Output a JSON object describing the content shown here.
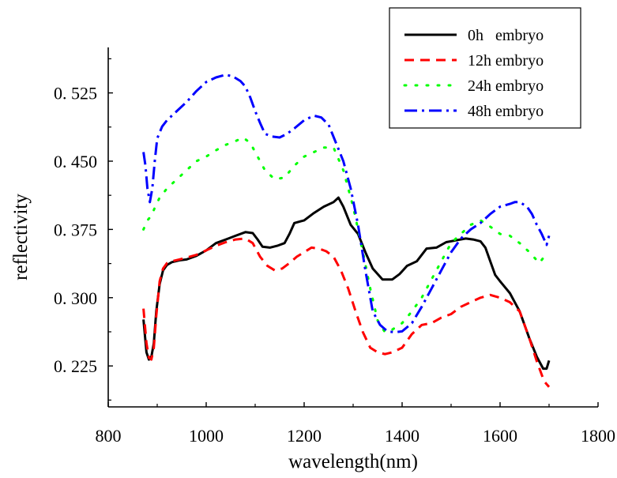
{
  "chart_data": {
    "type": "line",
    "title": "",
    "xlabel": "wavelength(nm)",
    "ylabel": "reflectivity",
    "xlim": [
      800,
      1800
    ],
    "ylim": [
      0.18,
      0.575
    ],
    "xticks": [
      800,
      1000,
      1200,
      1400,
      1600,
      1800
    ],
    "xtick_labels": [
      "800",
      "1000",
      "1200",
      "1400",
      "1600",
      "1800"
    ],
    "yticks": [
      0.225,
      0.3,
      0.375,
      0.45,
      0.525
    ],
    "ytick_labels": [
      "0. 225",
      "0. 300",
      "0. 375",
      "0. 450",
      "0. 525"
    ],
    "grid": false,
    "legend_position": "top-right",
    "series": [
      {
        "name": "0h   embryo",
        "color": "#000000",
        "dash": "solid",
        "x": [
          872,
          878,
          883,
          888,
          893,
          898,
          905,
          912,
          920,
          930,
          945,
          960,
          980,
          1000,
          1020,
          1040,
          1060,
          1080,
          1095,
          1105,
          1115,
          1130,
          1145,
          1160,
          1170,
          1180,
          1200,
          1220,
          1240,
          1260,
          1270,
          1280,
          1295,
          1310,
          1325,
          1340,
          1360,
          1380,
          1395,
          1410,
          1430,
          1450,
          1470,
          1490,
          1510,
          1530,
          1545,
          1560,
          1570,
          1580,
          1590,
          1600,
          1620,
          1640,
          1660,
          1675,
          1688,
          1695,
          1700
        ],
        "y": [
          0.276,
          0.24,
          0.232,
          0.235,
          0.25,
          0.285,
          0.315,
          0.33,
          0.336,
          0.339,
          0.341,
          0.342,
          0.346,
          0.352,
          0.36,
          0.364,
          0.368,
          0.372,
          0.371,
          0.364,
          0.356,
          0.355,
          0.357,
          0.36,
          0.37,
          0.382,
          0.385,
          0.393,
          0.4,
          0.405,
          0.41,
          0.4,
          0.38,
          0.37,
          0.35,
          0.332,
          0.32,
          0.32,
          0.326,
          0.335,
          0.34,
          0.354,
          0.355,
          0.361,
          0.363,
          0.365,
          0.364,
          0.362,
          0.355,
          0.34,
          0.325,
          0.318,
          0.305,
          0.285,
          0.255,
          0.235,
          0.222,
          0.222,
          0.231
        ]
      },
      {
        "name": "12h embryo",
        "color": "#ff0000",
        "dash": "12 8",
        "x": [
          872,
          878,
          883,
          888,
          893,
          898,
          905,
          912,
          920,
          930,
          945,
          960,
          980,
          1000,
          1020,
          1040,
          1060,
          1080,
          1095,
          1110,
          1125,
          1140,
          1155,
          1170,
          1185,
          1200,
          1215,
          1230,
          1245,
          1260,
          1275,
          1290,
          1305,
          1320,
          1335,
          1350,
          1365,
          1380,
          1400,
          1420,
          1440,
          1460,
          1480,
          1500,
          1520,
          1540,
          1560,
          1580,
          1600,
          1620,
          1640,
          1660,
          1675,
          1690,
          1700
        ],
        "y": [
          0.288,
          0.25,
          0.234,
          0.232,
          0.245,
          0.28,
          0.318,
          0.332,
          0.338,
          0.34,
          0.342,
          0.344,
          0.347,
          0.352,
          0.357,
          0.361,
          0.364,
          0.365,
          0.36,
          0.345,
          0.335,
          0.33,
          0.332,
          0.338,
          0.345,
          0.35,
          0.355,
          0.354,
          0.351,
          0.345,
          0.33,
          0.31,
          0.285,
          0.262,
          0.245,
          0.24,
          0.238,
          0.24,
          0.245,
          0.26,
          0.27,
          0.272,
          0.278,
          0.282,
          0.29,
          0.295,
          0.3,
          0.303,
          0.3,
          0.295,
          0.285,
          0.255,
          0.23,
          0.208,
          0.202
        ]
      },
      {
        "name": "24h embryo",
        "color": "#00ff00",
        "dash": "2 12",
        "x": [
          872,
          880,
          888,
          896,
          905,
          920,
          940,
          960,
          980,
          1000,
          1020,
          1040,
          1060,
          1075,
          1090,
          1105,
          1120,
          1140,
          1160,
          1180,
          1200,
          1220,
          1240,
          1260,
          1280,
          1300,
          1320,
          1335,
          1350,
          1365,
          1380,
          1400,
          1420,
          1440,
          1460,
          1480,
          1500,
          1520,
          1540,
          1560,
          1580,
          1600,
          1620,
          1640,
          1660,
          1680,
          1690,
          1700
        ],
        "y": [
          0.375,
          0.385,
          0.39,
          0.4,
          0.41,
          0.42,
          0.43,
          0.44,
          0.45,
          0.455,
          0.462,
          0.468,
          0.472,
          0.476,
          0.47,
          0.455,
          0.44,
          0.43,
          0.432,
          0.445,
          0.455,
          0.46,
          0.465,
          0.465,
          0.44,
          0.4,
          0.35,
          0.31,
          0.275,
          0.262,
          0.265,
          0.272,
          0.285,
          0.3,
          0.32,
          0.34,
          0.36,
          0.37,
          0.38,
          0.385,
          0.378,
          0.37,
          0.368,
          0.36,
          0.35,
          0.338,
          0.345,
          0.35
        ]
      },
      {
        "name": "48h embryo",
        "color": "#0000ff",
        "dash": "16 6 3 6",
        "x": [
          872,
          876,
          880,
          885,
          890,
          895,
          900,
          910,
          920,
          940,
          960,
          980,
          1000,
          1020,
          1040,
          1055,
          1070,
          1080,
          1090,
          1100,
          1110,
          1120,
          1135,
          1150,
          1165,
          1180,
          1200,
          1220,
          1235,
          1250,
          1265,
          1280,
          1295,
          1310,
          1325,
          1340,
          1355,
          1370,
          1385,
          1400,
          1420,
          1440,
          1460,
          1480,
          1500,
          1520,
          1540,
          1560,
          1580,
          1600,
          1620,
          1630,
          1640,
          1655,
          1665,
          1675,
          1685,
          1695,
          1700
        ],
        "y": [
          0.46,
          0.445,
          0.42,
          0.405,
          0.42,
          0.45,
          0.475,
          0.488,
          0.495,
          0.505,
          0.515,
          0.527,
          0.537,
          0.542,
          0.545,
          0.543,
          0.538,
          0.532,
          0.52,
          0.505,
          0.492,
          0.48,
          0.477,
          0.476,
          0.48,
          0.486,
          0.495,
          0.5,
          0.498,
          0.49,
          0.47,
          0.45,
          0.42,
          0.38,
          0.33,
          0.285,
          0.27,
          0.263,
          0.262,
          0.263,
          0.272,
          0.29,
          0.31,
          0.33,
          0.35,
          0.365,
          0.375,
          0.382,
          0.392,
          0.4,
          0.403,
          0.405,
          0.405,
          0.4,
          0.392,
          0.38,
          0.37,
          0.358,
          0.368
        ]
      }
    ]
  }
}
